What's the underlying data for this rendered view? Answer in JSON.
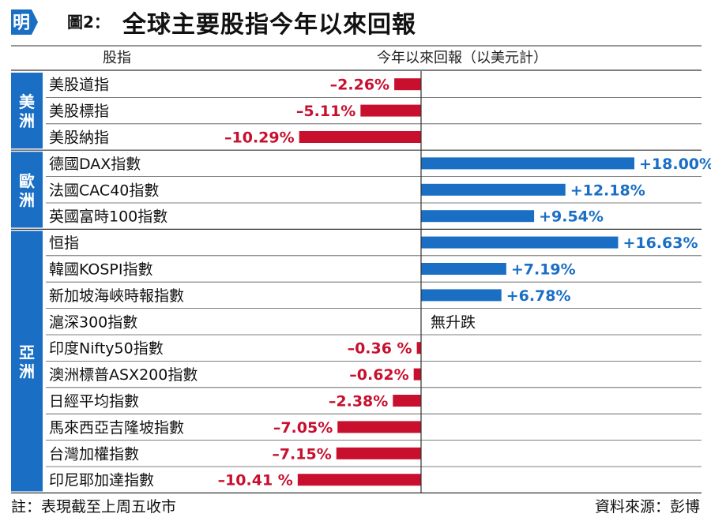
{
  "header": {
    "logo_char": "明",
    "figure_number": "圖2：",
    "title": "全球主要股指今年以來回報"
  },
  "columns": {
    "index_header": "股指",
    "return_header": "今年以來回報（以美元計）"
  },
  "colors": {
    "positive": "#1a6fc4",
    "negative": "#c8102e",
    "region_band": "#1a6fc4",
    "logo": "#1a6fc4"
  },
  "chart_data": {
    "type": "bar",
    "orientation": "horizontal",
    "groups": [
      {
        "region": "美洲",
        "items": [
          {
            "name": "美股道指",
            "value": -2.26,
            "label": "–2.26%"
          },
          {
            "name": "美股標指",
            "value": -5.11,
            "label": "–5.11%"
          },
          {
            "name": "美股納指",
            "value": -10.29,
            "label": "–10.29%"
          }
        ]
      },
      {
        "region": "歐洲",
        "items": [
          {
            "name": "德國DAX指數",
            "value": 18.0,
            "label": "+18.00%"
          },
          {
            "name": "法國CAC40指數",
            "value": 12.18,
            "label": "+12.18%"
          },
          {
            "name": "英國富時100指數",
            "value": 9.54,
            "label": "+9.54%"
          }
        ]
      },
      {
        "region": "亞洲",
        "items": [
          {
            "name": "恒指",
            "value": 16.63,
            "label": "+16.63%"
          },
          {
            "name": "韓國KOSPI指數",
            "value": 7.19,
            "label": "+7.19%"
          },
          {
            "name": "新加坡海峽時報指數",
            "value": 6.78,
            "label": "+6.78%"
          },
          {
            "name": "滬深300指數",
            "value": 0,
            "label": "無升跌"
          },
          {
            "name": "印度Nifty50指數",
            "value": -0.36,
            "label": "–0.36 %"
          },
          {
            "name": "澳洲標普ASX200指數",
            "value": -0.62,
            "label": "–0.62%"
          },
          {
            "name": "日經平均指數",
            "value": -2.38,
            "label": "–2.38%"
          },
          {
            "name": "馬來西亞吉隆坡指數",
            "value": -7.05,
            "label": "–7.05%"
          },
          {
            "name": "台灣加權指數",
            "value": -7.15,
            "label": "–7.15%"
          },
          {
            "name": "印尼耶加達指數",
            "value": -10.41,
            "label": "–10.41 %"
          }
        ]
      }
    ]
  },
  "footer": {
    "note": "註：表現截至上周五收市",
    "source": "資料來源：彭博"
  }
}
